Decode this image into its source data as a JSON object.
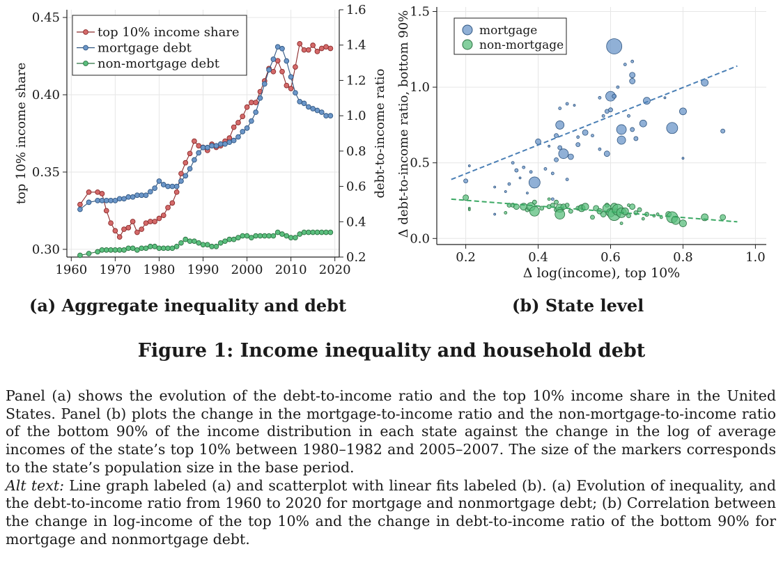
{
  "panel_a": {
    "caption": "(a) Aggregate inequality and debt",
    "y_left_label": "top 10% income share",
    "y_right_label": "debt-to-income ratio",
    "x_ticks": [
      "1960",
      "1970",
      "1980",
      "1990",
      "2000",
      "2010",
      "2020"
    ],
    "y_left_ticks": [
      "0.30",
      "0.35",
      "0.40",
      "0.45"
    ],
    "y_right_ticks": [
      "0.2",
      "0.4",
      "0.6",
      "0.8",
      "1.0",
      "1.2",
      "1.4",
      "1.6"
    ],
    "legend": [
      "top 10% income share",
      "mortgage debt",
      "non-mortgage debt"
    ]
  },
  "panel_b": {
    "caption": "(b) State level",
    "xlabel": "Δ log(income), top 10%",
    "ylabel": "Δ debt-to-income ratio, bottom 90%",
    "x_ticks": [
      "0.2",
      "0.4",
      "0.6",
      "0.8",
      "1.0"
    ],
    "y_ticks": [
      "0.0",
      "0.5",
      "1.0",
      "1.5"
    ],
    "legend": [
      "mortgage",
      "non-mortgage"
    ]
  },
  "figure_caption": "Figure 1: Income inequality and household debt",
  "paragraph": "Panel (a) shows the evolution of the debt-to-income ratio and the top 10% income share in the United States. Panel (b) plots the change in the mortgage-to-income ratio and the non-mortgage-to-income ratio of the bottom 90% of the income distribution in each state against the change in the log of average incomes of the state’s top 10% between 1980–1982 and 2005–2007. The size of the markers corresponds to the state’s population size in the base period.",
  "alt_text_label": "Alt text:",
  "alt_text": "Line graph labeled (a) and scatterplot with linear fits labeled (b). (a) Evolution of inequality, and the debt-to-income ratio from 1960 to 2020 for mortgage and nonmortgage debt; (b) Correlation between the change in log-income of the top 10% and the change in debt-to-income ratio of the bottom 90% for mortgage and nonmortgage debt.",
  "colors": {
    "top10": "#d46a6a",
    "top10_edge": "#8b2a2a",
    "mortgage": "#6b96c8",
    "mortgage_edge": "#2f5580",
    "nonmortgage": "#5bbf7e",
    "nonmortgage_edge": "#2a7040",
    "fit_mortgage": "#4a7fb5",
    "fit_nonmortgage": "#3aa863"
  },
  "chart_data": [
    {
      "type": "line",
      "title": "(a) Aggregate inequality and debt",
      "xlabel": "",
      "xlim": [
        1959,
        2021
      ],
      "series": [
        {
          "name": "top 10% income share",
          "axis": "left",
          "ylim": [
            0.295,
            0.455
          ],
          "x": [
            1962,
            1964,
            1966,
            1967,
            1968,
            1969,
            1970,
            1971,
            1972,
            1973,
            1974,
            1975,
            1976,
            1977,
            1978,
            1979,
            1980,
            1981,
            1982,
            1983,
            1984,
            1985,
            1986,
            1987,
            1988,
            1989,
            1990,
            1991,
            1992,
            1993,
            1994,
            1995,
            1996,
            1997,
            1998,
            1999,
            2000,
            2001,
            2002,
            2003,
            2004,
            2005,
            2006,
            2007,
            2008,
            2009,
            2010,
            2011,
            2012,
            2013,
            2014,
            2015,
            2016,
            2017,
            2018,
            2019
          ],
          "values": [
            0.329,
            0.337,
            0.337,
            0.336,
            0.325,
            0.317,
            0.312,
            0.308,
            0.313,
            0.314,
            0.318,
            0.311,
            0.313,
            0.317,
            0.318,
            0.318,
            0.32,
            0.322,
            0.327,
            0.33,
            0.337,
            0.349,
            0.356,
            0.362,
            0.37,
            0.367,
            0.366,
            0.364,
            0.368,
            0.366,
            0.367,
            0.37,
            0.372,
            0.379,
            0.382,
            0.386,
            0.392,
            0.395,
            0.395,
            0.402,
            0.409,
            0.417,
            0.415,
            0.422,
            0.415,
            0.406,
            0.404,
            0.418,
            0.433,
            0.429,
            0.429,
            0.432,
            0.428,
            0.43,
            0.431,
            0.43
          ]
        },
        {
          "name": "mortgage debt",
          "axis": "right",
          "ylim": [
            0.2,
            1.6
          ],
          "x": [
            1962,
            1964,
            1966,
            1967,
            1968,
            1969,
            1970,
            1971,
            1972,
            1973,
            1974,
            1975,
            1976,
            1977,
            1978,
            1979,
            1980,
            1981,
            1982,
            1983,
            1984,
            1985,
            1986,
            1987,
            1988,
            1989,
            1990,
            1991,
            1992,
            1993,
            1994,
            1995,
            1996,
            1997,
            1998,
            1999,
            2000,
            2001,
            2002,
            2003,
            2004,
            2005,
            2006,
            2007,
            2008,
            2009,
            2010,
            2011,
            2012,
            2013,
            2014,
            2015,
            2016,
            2017,
            2018,
            2019
          ],
          "values": [
            0.47,
            0.51,
            0.52,
            0.52,
            0.52,
            0.52,
            0.52,
            0.53,
            0.53,
            0.54,
            0.54,
            0.55,
            0.55,
            0.55,
            0.57,
            0.59,
            0.63,
            0.61,
            0.6,
            0.6,
            0.6,
            0.63,
            0.66,
            0.7,
            0.75,
            0.79,
            0.82,
            0.82,
            0.83,
            0.83,
            0.84,
            0.84,
            0.85,
            0.86,
            0.88,
            0.91,
            0.93,
            0.97,
            1.02,
            1.1,
            1.18,
            1.26,
            1.32,
            1.39,
            1.38,
            1.31,
            1.22,
            1.13,
            1.08,
            1.07,
            1.05,
            1.04,
            1.03,
            1.02,
            1.0,
            1.0
          ]
        },
        {
          "name": "non-mortgage debt",
          "axis": "right",
          "ylim": [
            0.2,
            1.6
          ],
          "x": [
            1962,
            1964,
            1966,
            1967,
            1968,
            1969,
            1970,
            1971,
            1972,
            1973,
            1974,
            1975,
            1976,
            1977,
            1978,
            1979,
            1980,
            1981,
            1982,
            1983,
            1984,
            1985,
            1986,
            1987,
            1988,
            1989,
            1990,
            1991,
            1992,
            1993,
            1994,
            1995,
            1996,
            1997,
            1998,
            1999,
            2000,
            2001,
            2002,
            2003,
            2004,
            2005,
            2006,
            2007,
            2008,
            2009,
            2010,
            2011,
            2012,
            2013,
            2014,
            2015,
            2016,
            2017,
            2018,
            2019
          ],
          "values": [
            0.21,
            0.22,
            0.23,
            0.24,
            0.24,
            0.24,
            0.24,
            0.24,
            0.24,
            0.25,
            0.25,
            0.24,
            0.25,
            0.25,
            0.26,
            0.26,
            0.25,
            0.25,
            0.25,
            0.25,
            0.26,
            0.28,
            0.3,
            0.29,
            0.29,
            0.28,
            0.27,
            0.27,
            0.26,
            0.26,
            0.28,
            0.29,
            0.3,
            0.3,
            0.31,
            0.32,
            0.32,
            0.31,
            0.32,
            0.32,
            0.32,
            0.32,
            0.32,
            0.34,
            0.33,
            0.32,
            0.31,
            0.31,
            0.33,
            0.34,
            0.34,
            0.34,
            0.34,
            0.34,
            0.34,
            0.34
          ]
        }
      ],
      "grid": true,
      "legend_position": "top-left"
    },
    {
      "type": "scatter",
      "title": "(b) State level",
      "xlabel": "Δ log(income), top 10%",
      "ylabel": "Δ debt-to-income ratio, bottom 90%",
      "xlim": [
        0.12,
        1.03
      ],
      "ylim": [
        -0.04,
        1.53
      ],
      "grid": true,
      "legend_position": "top-left",
      "series": [
        {
          "name": "mortgage",
          "points": [
            [
              0.2,
              0.38,
              3
            ],
            [
              0.21,
              0.48,
              1.5
            ],
            [
              0.28,
              0.34,
              1.5
            ],
            [
              0.28,
              0.16,
              1.5
            ],
            [
              0.31,
              0.31,
              1.5
            ],
            [
              0.32,
              0.36,
              2
            ],
            [
              0.33,
              0.5,
              2
            ],
            [
              0.34,
              0.45,
              2.5
            ],
            [
              0.35,
              0.4,
              1.5
            ],
            [
              0.36,
              0.47,
              2
            ],
            [
              0.37,
              0.3,
              1.5
            ],
            [
              0.38,
              0.44,
              2
            ],
            [
              0.39,
              0.37,
              8
            ],
            [
              0.4,
              0.64,
              4
            ],
            [
              0.42,
              0.46,
              2
            ],
            [
              0.43,
              0.61,
              1.5
            ],
            [
              0.44,
              0.26,
              2
            ],
            [
              0.44,
              0.43,
              2
            ],
            [
              0.45,
              0.52,
              3
            ],
            [
              0.45,
              0.68,
              3
            ],
            [
              0.46,
              0.6,
              3
            ],
            [
              0.46,
              0.75,
              6
            ],
            [
              0.46,
              0.86,
              2
            ],
            [
              0.47,
              0.56,
              7
            ],
            [
              0.48,
              0.39,
              2
            ],
            [
              0.48,
              0.89,
              2
            ],
            [
              0.49,
              0.54,
              4
            ],
            [
              0.5,
              0.88,
              1.5
            ],
            [
              0.51,
              0.62,
              3
            ],
            [
              0.51,
              0.67,
              2
            ],
            [
              0.53,
              0.7,
              4
            ],
            [
              0.55,
              0.68,
              2
            ],
            [
              0.57,
              0.59,
              2
            ],
            [
              0.57,
              0.93,
              2
            ],
            [
              0.58,
              0.81,
              2
            ],
            [
              0.59,
              0.56,
              4
            ],
            [
              0.59,
              0.84,
              3
            ],
            [
              0.6,
              0.85,
              3
            ],
            [
              0.6,
              0.94,
              7
            ],
            [
              0.61,
              0.94,
              3
            ],
            [
              0.61,
              1.27,
              11
            ],
            [
              0.62,
              1.0,
              2
            ],
            [
              0.63,
              0.72,
              7
            ],
            [
              0.63,
              0.65,
              6
            ],
            [
              0.64,
              1.15,
              2
            ],
            [
              0.65,
              0.81,
              2
            ],
            [
              0.66,
              1.04,
              4
            ],
            [
              0.66,
              1.08,
              4
            ],
            [
              0.66,
              0.72,
              3
            ],
            [
              0.66,
              1.17,
              2
            ],
            [
              0.67,
              0.66,
              3
            ],
            [
              0.69,
              0.76,
              5
            ],
            [
              0.7,
              0.91,
              5
            ],
            [
              0.75,
              0.93,
              1.5
            ],
            [
              0.77,
              0.73,
              8
            ],
            [
              0.8,
              0.84,
              5
            ],
            [
              0.8,
              0.53,
              1.5
            ],
            [
              0.86,
              1.03,
              5
            ],
            [
              0.91,
              0.71,
              3
            ]
          ]
        },
        {
          "name": "non-mortgage",
          "points": [
            [
              0.2,
              0.27,
              4
            ],
            [
              0.21,
              0.2,
              1.5
            ],
            [
              0.21,
              0.19,
              1.5
            ],
            [
              0.31,
              0.17,
              2
            ],
            [
              0.32,
              0.22,
              3
            ],
            [
              0.33,
              0.22,
              3
            ],
            [
              0.34,
              0.21,
              4
            ],
            [
              0.36,
              0.21,
              5
            ],
            [
              0.37,
              0.19,
              3
            ],
            [
              0.38,
              0.21,
              6
            ],
            [
              0.39,
              0.18,
              7
            ],
            [
              0.39,
              0.24,
              3
            ],
            [
              0.41,
              0.2,
              3
            ],
            [
              0.43,
              0.26,
              2
            ],
            [
              0.43,
              0.21,
              3
            ],
            [
              0.44,
              0.22,
              3
            ],
            [
              0.45,
              0.24,
              3
            ],
            [
              0.45,
              0.19,
              3
            ],
            [
              0.46,
              0.2,
              6
            ],
            [
              0.46,
              0.16,
              7
            ],
            [
              0.47,
              0.21,
              4
            ],
            [
              0.48,
              0.22,
              3
            ],
            [
              0.49,
              0.18,
              3
            ],
            [
              0.51,
              0.2,
              3
            ],
            [
              0.52,
              0.21,
              3
            ],
            [
              0.52,
              0.2,
              5
            ],
            [
              0.53,
              0.21,
              5
            ],
            [
              0.55,
              0.14,
              3
            ],
            [
              0.56,
              0.2,
              4
            ],
            [
              0.57,
              0.18,
              4
            ],
            [
              0.58,
              0.16,
              4
            ],
            [
              0.59,
              0.22,
              3
            ],
            [
              0.59,
              0.2,
              6
            ],
            [
              0.6,
              0.17,
              6
            ],
            [
              0.61,
              0.16,
              9
            ],
            [
              0.61,
              0.21,
              5
            ],
            [
              0.62,
              0.19,
              8
            ],
            [
              0.63,
              0.1,
              2
            ],
            [
              0.63,
              0.17,
              7
            ],
            [
              0.64,
              0.18,
              5
            ],
            [
              0.65,
              0.22,
              2
            ],
            [
              0.65,
              0.15,
              3
            ],
            [
              0.66,
              0.21,
              4
            ],
            [
              0.67,
              0.17,
              3
            ],
            [
              0.68,
              0.19,
              3
            ],
            [
              0.69,
              0.13,
              2
            ],
            [
              0.7,
              0.16,
              3
            ],
            [
              0.72,
              0.15,
              2
            ],
            [
              0.73,
              0.16,
              2
            ],
            [
              0.74,
              0.14,
              2
            ],
            [
              0.76,
              0.16,
              4
            ],
            [
              0.77,
              0.14,
              8
            ],
            [
              0.78,
              0.12,
              6
            ],
            [
              0.8,
              0.1,
              5
            ],
            [
              0.86,
              0.14,
              5
            ],
            [
              0.91,
              0.14,
              4
            ]
          ]
        }
      ],
      "fits": [
        {
          "name": "mortgage fit",
          "x": [
            0.16,
            0.95
          ],
          "y": [
            0.39,
            1.14
          ]
        },
        {
          "name": "non-mortgage fit",
          "x": [
            0.16,
            0.95
          ],
          "y": [
            0.26,
            0.11
          ]
        }
      ]
    }
  ]
}
